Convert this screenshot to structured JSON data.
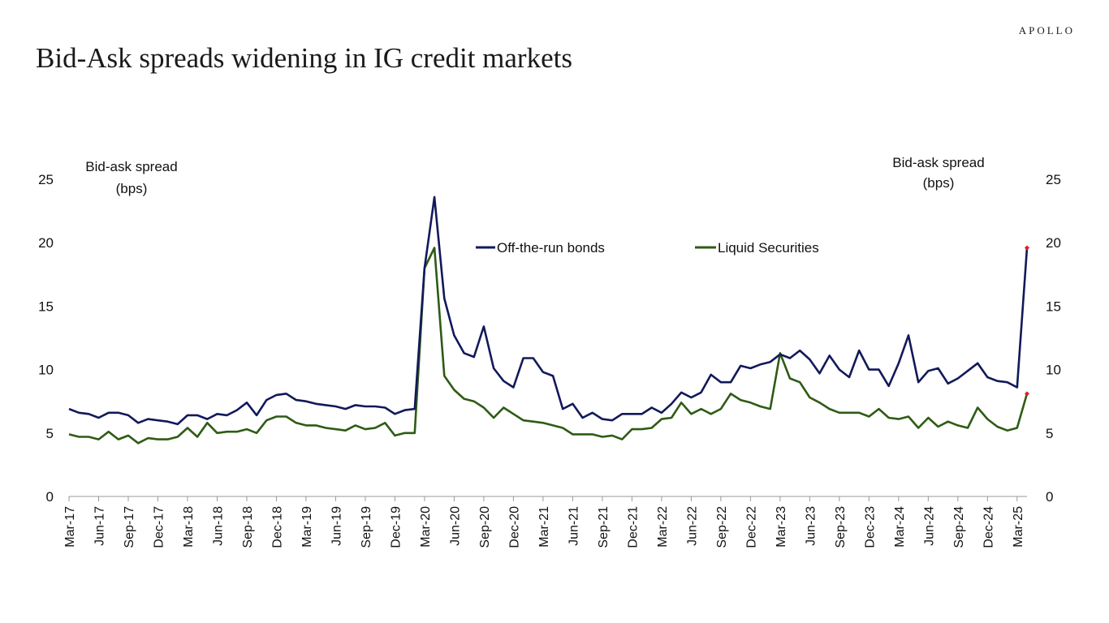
{
  "brand": "APOLLO",
  "chart_data": {
    "type": "line",
    "title": "Bid-Ask spreads widening in IG credit markets",
    "ylabel_left": [
      "Bid-ask spread",
      "(bps)"
    ],
    "ylabel_right": [
      "Bid-ask spread",
      "(bps)"
    ],
    "ylim": [
      0,
      25
    ],
    "yticks": [
      "0",
      "5",
      "10",
      "15",
      "20",
      "25"
    ],
    "x_tick_labels": [
      "Mar-17",
      "Jun-17",
      "Sep-17",
      "Dec-17",
      "Mar-18",
      "Jun-18",
      "Sep-18",
      "Dec-18",
      "Mar-19",
      "Jun-19",
      "Sep-19",
      "Dec-19",
      "Mar-20",
      "Jun-20",
      "Sep-20",
      "Dec-20",
      "Mar-21",
      "Jun-21",
      "Sep-21",
      "Dec-21",
      "Mar-22",
      "Jun-22",
      "Sep-22",
      "Dec-22",
      "Mar-23",
      "Jun-23",
      "Sep-23",
      "Dec-23",
      "Mar-24",
      "Jun-24",
      "Sep-24",
      "Dec-24",
      "Mar-25"
    ],
    "legend_position": "top-center",
    "grid": false,
    "series": [
      {
        "name": "Off-the-run bonds",
        "color": "#12195a",
        "values": [
          6.9,
          6.6,
          6.5,
          6.2,
          6.6,
          6.6,
          6.4,
          5.8,
          6.1,
          6.0,
          5.9,
          5.7,
          6.4,
          6.4,
          6.1,
          6.5,
          6.4,
          6.8,
          7.4,
          6.4,
          7.6,
          8.0,
          8.1,
          7.6,
          7.5,
          7.3,
          7.2,
          7.1,
          6.9,
          7.2,
          7.1,
          7.1,
          7.0,
          6.5,
          6.8,
          6.9,
          18.0,
          23.6,
          15.6,
          12.7,
          11.3,
          11.0,
          13.4,
          10.1,
          9.1,
          8.6,
          10.9,
          10.9,
          9.8,
          9.5,
          6.9,
          7.3,
          6.2,
          6.6,
          6.1,
          6.0,
          6.5,
          6.5,
          6.5,
          7.0,
          6.6,
          7.3,
          8.2,
          7.8,
          8.2,
          9.6,
          9.0,
          9.0,
          10.3,
          10.1,
          10.4,
          10.6,
          11.2,
          10.9,
          11.5,
          10.8,
          9.7,
          11.1,
          10.0,
          9.4,
          11.5,
          10.0,
          10.0,
          8.7,
          10.5,
          12.7,
          9.0,
          9.9,
          10.1,
          8.9,
          9.3,
          9.9,
          10.5,
          9.4,
          9.1,
          9.0,
          8.6,
          19.6
        ]
      },
      {
        "name": "Liquid Securities",
        "color": "#2e5b14",
        "values": [
          4.9,
          4.7,
          4.7,
          4.5,
          5.1,
          4.5,
          4.8,
          4.2,
          4.6,
          4.5,
          4.5,
          4.7,
          5.4,
          4.7,
          5.8,
          5.0,
          5.1,
          5.1,
          5.3,
          5.0,
          6.0,
          6.3,
          6.3,
          5.8,
          5.6,
          5.6,
          5.4,
          5.3,
          5.2,
          5.6,
          5.3,
          5.4,
          5.8,
          4.8,
          5.0,
          5.0,
          18.0,
          19.6,
          9.5,
          8.4,
          7.7,
          7.5,
          7.0,
          6.2,
          7.0,
          6.5,
          6.0,
          5.9,
          5.8,
          5.6,
          5.4,
          4.9,
          4.9,
          4.9,
          4.7,
          4.8,
          4.5,
          5.3,
          5.3,
          5.4,
          6.1,
          6.2,
          7.4,
          6.5,
          6.9,
          6.5,
          6.9,
          8.1,
          7.6,
          7.4,
          7.1,
          6.9,
          11.3,
          9.3,
          9.0,
          7.8,
          7.4,
          6.9,
          6.6,
          6.6,
          6.6,
          6.3,
          6.9,
          6.2,
          6.1,
          6.3,
          5.4,
          6.2,
          5.5,
          5.9,
          5.6,
          5.4,
          7.0,
          6.1,
          5.5,
          5.2,
          5.4,
          8.1
        ]
      }
    ]
  }
}
